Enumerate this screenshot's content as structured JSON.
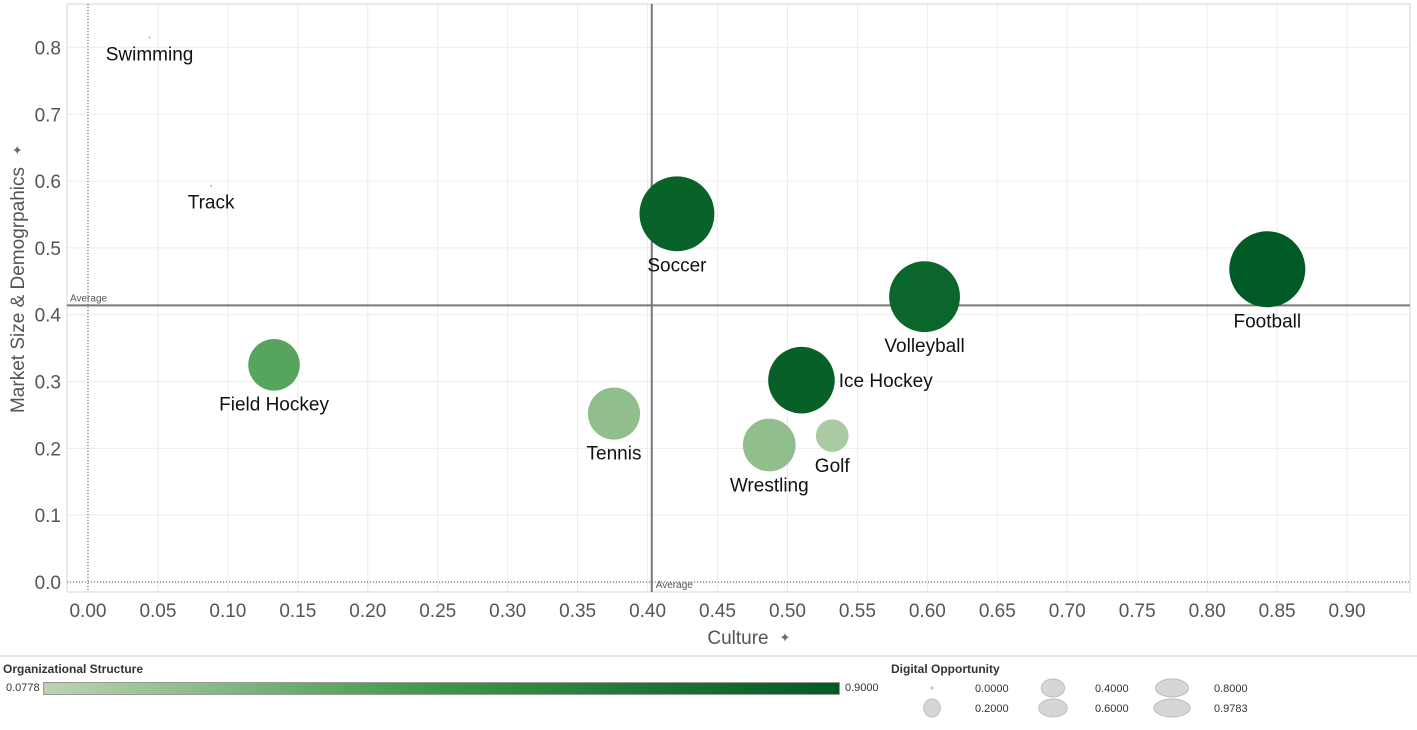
{
  "chart_data": {
    "type": "scatter",
    "title": "",
    "xlabel": "Culture",
    "ylabel": "Market Size & Demogrpahics",
    "xlim": [
      -0.015,
      0.945
    ],
    "ylim": [
      -0.015,
      0.865
    ],
    "x_ticks": [
      "0.00",
      "0.05",
      "0.10",
      "0.15",
      "0.20",
      "0.25",
      "0.30",
      "0.35",
      "0.40",
      "0.45",
      "0.50",
      "0.55",
      "0.60",
      "0.65",
      "0.70",
      "0.75",
      "0.80",
      "0.85",
      "0.90"
    ],
    "y_ticks": [
      "0.0",
      "0.1",
      "0.2",
      "0.3",
      "0.4",
      "0.5",
      "0.6",
      "0.7",
      "0.8"
    ],
    "grid": true,
    "reference_lines": {
      "x_average": 0.403,
      "y_average": 0.414,
      "x_label": "Average",
      "y_label": "Average"
    },
    "points": [
      {
        "label": "Swimming",
        "x": 0.044,
        "y": 0.815,
        "size": 0.0,
        "color": 0.0778
      },
      {
        "label": "Track",
        "x": 0.088,
        "y": 0.593,
        "size": 0.0,
        "color": 0.0778
      },
      {
        "label": "Soccer",
        "x": 0.421,
        "y": 0.551,
        "size": 0.95,
        "color": 0.84
      },
      {
        "label": "Football",
        "x": 0.843,
        "y": 0.468,
        "size": 0.9783,
        "color": 0.9
      },
      {
        "label": "Volleyball",
        "x": 0.598,
        "y": 0.427,
        "size": 0.85,
        "color": 0.82
      },
      {
        "label": "Field Hockey",
        "x": 0.133,
        "y": 0.325,
        "size": 0.45,
        "color": 0.4
      },
      {
        "label": "Ice Hockey",
        "x": 0.51,
        "y": 0.302,
        "size": 0.75,
        "color": 0.86
      },
      {
        "label": "Tennis",
        "x": 0.376,
        "y": 0.252,
        "size": 0.46,
        "color": 0.22
      },
      {
        "label": "Wrestling",
        "x": 0.487,
        "y": 0.205,
        "size": 0.47,
        "color": 0.22
      },
      {
        "label": "Golf",
        "x": 0.532,
        "y": 0.219,
        "size": 0.18,
        "color": 0.14
      }
    ],
    "color_legend": {
      "title": "Organizational Structure",
      "min": "0.0778",
      "max": "0.9000",
      "color_min": "#bdd3b2",
      "color_mid": "#3b9748",
      "color_max": "#005a24"
    },
    "size_legend": {
      "title": "Digital Opportunity",
      "entries": [
        {
          "label": "0.0000",
          "value": 0.0
        },
        {
          "label": "0.2000",
          "value": 0.2
        },
        {
          "label": "0.4000",
          "value": 0.4
        },
        {
          "label": "0.6000",
          "value": 0.6
        },
        {
          "label": "0.8000",
          "value": 0.8
        },
        {
          "label": "0.9783",
          "value": 0.9783
        }
      ]
    },
    "pin_icon": "pin-icon"
  }
}
